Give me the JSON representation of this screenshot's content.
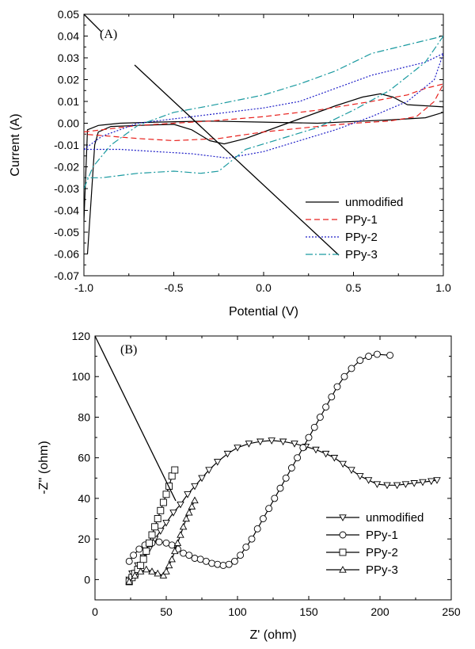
{
  "chart_data": [
    {
      "type": "line",
      "panel_label": "(A)",
      "xlabel": "Potential (V)",
      "ylabel": "Current (A)",
      "xlim": [
        -1.0,
        1.0
      ],
      "ylim": [
        -0.07,
        0.05
      ],
      "x_ticks": [
        "-1.0",
        "-0.5",
        "0.0",
        "0.5",
        "1.0"
      ],
      "y_ticks": [
        "0.05",
        "0.04",
        "0.03",
        "0.02",
        "0.01",
        "0.00",
        "-0.01",
        "-0.02",
        "-0.03",
        "-0.04",
        "-0.05",
        "-0.06",
        "-0.07"
      ],
      "legend_position": "bottom-right",
      "series": [
        {
          "name": "unmodified",
          "color": "#000000",
          "dash": "solid",
          "points": [
            [
              -0.98,
              -0.06
            ],
            [
              -0.96,
              -0.035
            ],
            [
              -0.94,
              -0.01
            ],
            [
              -0.92,
              -0.004
            ],
            [
              -0.85,
              -0.0015
            ],
            [
              -0.7,
              -0.001
            ],
            [
              -0.5,
              -0.0005
            ],
            [
              -0.4,
              -0.003
            ],
            [
              -0.3,
              -0.008
            ],
            [
              -0.22,
              -0.0095
            ],
            [
              -0.1,
              -0.007
            ],
            [
              0.0,
              -0.004
            ],
            [
              0.2,
              0.002
            ],
            [
              0.4,
              0.008
            ],
            [
              0.55,
              0.012
            ],
            [
              0.65,
              0.0135
            ],
            [
              0.72,
              0.012
            ],
            [
              0.8,
              0.0085
            ],
            [
              0.9,
              0.008
            ],
            [
              1.0,
              0.0075
            ],
            [
              1.0,
              0.005
            ],
            [
              0.9,
              0.0025
            ],
            [
              0.7,
              0.0015
            ],
            [
              0.5,
              0.0008
            ],
            [
              0.3,
              0.0
            ],
            [
              0.0,
              0.0005
            ],
            [
              -0.3,
              0.001
            ],
            [
              -0.6,
              0.0005
            ],
            [
              -0.8,
              0.0
            ],
            [
              -0.92,
              -0.001
            ],
            [
              -0.98,
              -0.003
            ],
            [
              -1.0,
              -0.045
            ]
          ]
        },
        {
          "name": "PPy-1",
          "color": "#e8211d",
          "dash": "7,4",
          "points": [
            [
              -1.0,
              -0.004
            ],
            [
              -0.9,
              -0.003
            ],
            [
              -0.7,
              -0.001
            ],
            [
              -0.5,
              0.0
            ],
            [
              -0.3,
              0.001
            ],
            [
              0.0,
              0.003
            ],
            [
              0.3,
              0.006
            ],
            [
              0.6,
              0.01
            ],
            [
              0.8,
              0.013
            ],
            [
              0.9,
              0.016
            ],
            [
              1.0,
              0.018
            ],
            [
              0.95,
              0.01
            ],
            [
              0.85,
              0.003
            ],
            [
              0.7,
              0.001
            ],
            [
              0.5,
              0.0
            ],
            [
              0.3,
              -0.0015
            ],
            [
              0.0,
              -0.004
            ],
            [
              -0.25,
              -0.007
            ],
            [
              -0.5,
              -0.008
            ],
            [
              -0.7,
              -0.007
            ],
            [
              -0.85,
              -0.006
            ],
            [
              -1.0,
              -0.005
            ]
          ]
        },
        {
          "name": "PPy-2",
          "color": "#1f1fc8",
          "dash": "2,2",
          "points": [
            [
              -1.0,
              -0.012
            ],
            [
              -0.9,
              -0.006
            ],
            [
              -0.7,
              0.0
            ],
            [
              -0.5,
              0.002
            ],
            [
              -0.3,
              0.004
            ],
            [
              0.0,
              0.007
            ],
            [
              0.2,
              0.01
            ],
            [
              0.4,
              0.016
            ],
            [
              0.6,
              0.022
            ],
            [
              0.8,
              0.026
            ],
            [
              0.9,
              0.028
            ],
            [
              1.0,
              0.032
            ],
            [
              0.95,
              0.02
            ],
            [
              0.8,
              0.01
            ],
            [
              0.6,
              0.003
            ],
            [
              0.4,
              -0.003
            ],
            [
              0.2,
              -0.008
            ],
            [
              0.0,
              -0.013
            ],
            [
              -0.2,
              -0.016
            ],
            [
              -0.4,
              -0.014
            ],
            [
              -0.6,
              -0.013
            ],
            [
              -0.8,
              -0.012
            ],
            [
              -1.0,
              -0.012
            ]
          ]
        },
        {
          "name": "PPy-3",
          "color": "#1a9aa0",
          "dash": "9,3,2,3",
          "points": [
            [
              -1.0,
              -0.03
            ],
            [
              -0.95,
              -0.02
            ],
            [
              -0.85,
              -0.01
            ],
            [
              -0.7,
              -0.001
            ],
            [
              -0.5,
              0.005
            ],
            [
              -0.3,
              0.008
            ],
            [
              0.0,
              0.013
            ],
            [
              0.2,
              0.018
            ],
            [
              0.4,
              0.024
            ],
            [
              0.6,
              0.032
            ],
            [
              0.8,
              0.036
            ],
            [
              1.0,
              0.04
            ],
            [
              0.9,
              0.028
            ],
            [
              0.7,
              0.015
            ],
            [
              0.5,
              0.006
            ],
            [
              0.3,
              -0.002
            ],
            [
              0.1,
              -0.007
            ],
            [
              -0.1,
              -0.012
            ],
            [
              -0.25,
              -0.022
            ],
            [
              -0.35,
              -0.023
            ],
            [
              -0.5,
              -0.022
            ],
            [
              -0.7,
              -0.023
            ],
            [
              -0.9,
              -0.025
            ],
            [
              -1.0,
              -0.025
            ]
          ]
        }
      ]
    },
    {
      "type": "scatter",
      "panel_label": "(B)",
      "xlabel": "Z' (ohm)",
      "ylabel": "-Z'' (ohm)",
      "xlim": [
        0,
        250
      ],
      "ylim": [
        -10,
        120
      ],
      "x_ticks": [
        "0",
        "50",
        "100",
        "150",
        "200",
        "250"
      ],
      "y_ticks": [
        "120",
        "100",
        "80",
        "60",
        "40",
        "20",
        "0"
      ],
      "legend_position": "bottom-right",
      "series": [
        {
          "name": "unmodified",
          "marker": "triangle-down",
          "color": "#000000",
          "points": [
            [
              24,
              0
            ],
            [
              26,
              3
            ],
            [
              30,
              7
            ],
            [
              34,
              11
            ],
            [
              38,
              15
            ],
            [
              42,
              20
            ],
            [
              46,
              24
            ],
            [
              50,
              28
            ],
            [
              55,
              33
            ],
            [
              60,
              37
            ],
            [
              65,
              42
            ],
            [
              70,
              46
            ],
            [
              75,
              50
            ],
            [
              80,
              54
            ],
            [
              86,
              58
            ],
            [
              93,
              62
            ],
            [
              100,
              65
            ],
            [
              108,
              67
            ],
            [
              116,
              68
            ],
            [
              124,
              68.5
            ],
            [
              132,
              68
            ],
            [
              140,
              67
            ],
            [
              148,
              65.5
            ],
            [
              155,
              64
            ],
            [
              162,
              62
            ],
            [
              168,
              60
            ],
            [
              174,
              57
            ],
            [
              180,
              54
            ],
            [
              186,
              51
            ],
            [
              192,
              49
            ],
            [
              198,
              47
            ],
            [
              205,
              46.5
            ],
            [
              212,
              46.5
            ],
            [
              218,
              47
            ],
            [
              224,
              47.5
            ],
            [
              230,
              48
            ],
            [
              236,
              48.5
            ],
            [
              240,
              49
            ]
          ]
        },
        {
          "name": "PPy-1",
          "color": "#000000",
          "marker": "circle",
          "points": [
            [
              24,
              9
            ],
            [
              27,
              12
            ],
            [
              31,
              15
            ],
            [
              35,
              17
            ],
            [
              40,
              18
            ],
            [
              45,
              18.5
            ],
            [
              50,
              18
            ],
            [
              54,
              17
            ],
            [
              58,
              15
            ],
            [
              62,
              13
            ],
            [
              66,
              12
            ],
            [
              70,
              10.5
            ],
            [
              74,
              10
            ],
            [
              78,
              9
            ],
            [
              82,
              8
            ],
            [
              86,
              7.5
            ],
            [
              90,
              7
            ],
            [
              94,
              7.5
            ],
            [
              98,
              9
            ],
            [
              102,
              12
            ],
            [
              106,
              16
            ],
            [
              110,
              20
            ],
            [
              114,
              25
            ],
            [
              118,
              30
            ],
            [
              122,
              35
            ],
            [
              126,
              40
            ],
            [
              130,
              45
            ],
            [
              134,
              50
            ],
            [
              138,
              55
            ],
            [
              142,
              60
            ],
            [
              146,
              65
            ],
            [
              150,
              70
            ],
            [
              154,
              75
            ],
            [
              158,
              80
            ],
            [
              162,
              85
            ],
            [
              166,
              90
            ],
            [
              170,
              95
            ],
            [
              175,
              100
            ],
            [
              180,
              104
            ],
            [
              186,
              108
            ],
            [
              192,
              110
            ],
            [
              198,
              111
            ],
            [
              207,
              110.5
            ]
          ]
        },
        {
          "name": "PPy-2",
          "color": "#000000",
          "marker": "square",
          "points": [
            [
              24,
              -1
            ],
            [
              26,
              1
            ],
            [
              28,
              3
            ],
            [
              30,
              5
            ],
            [
              32,
              7
            ],
            [
              34,
              10
            ],
            [
              36,
              14
            ],
            [
              38,
              18
            ],
            [
              40,
              22
            ],
            [
              42,
              26
            ],
            [
              44,
              30
            ],
            [
              46,
              34
            ],
            [
              48,
              38
            ],
            [
              50,
              42
            ],
            [
              52,
              46
            ],
            [
              54,
              51
            ],
            [
              56,
              54
            ]
          ]
        },
        {
          "name": "PPy-3",
          "color": "#000000",
          "marker": "triangle-up",
          "points": [
            [
              24,
              -1
            ],
            [
              28,
              2
            ],
            [
              32,
              4
            ],
            [
              36,
              5
            ],
            [
              40,
              4
            ],
            [
              44,
              3
            ],
            [
              48,
              2
            ],
            [
              50,
              4
            ],
            [
              52,
              7
            ],
            [
              54,
              10
            ],
            [
              56,
              14
            ],
            [
              58,
              18
            ],
            [
              60,
              22
            ],
            [
              62,
              26
            ],
            [
              64,
              30
            ],
            [
              66,
              33
            ],
            [
              68,
              36
            ],
            [
              70,
              39
            ]
          ]
        }
      ]
    }
  ]
}
